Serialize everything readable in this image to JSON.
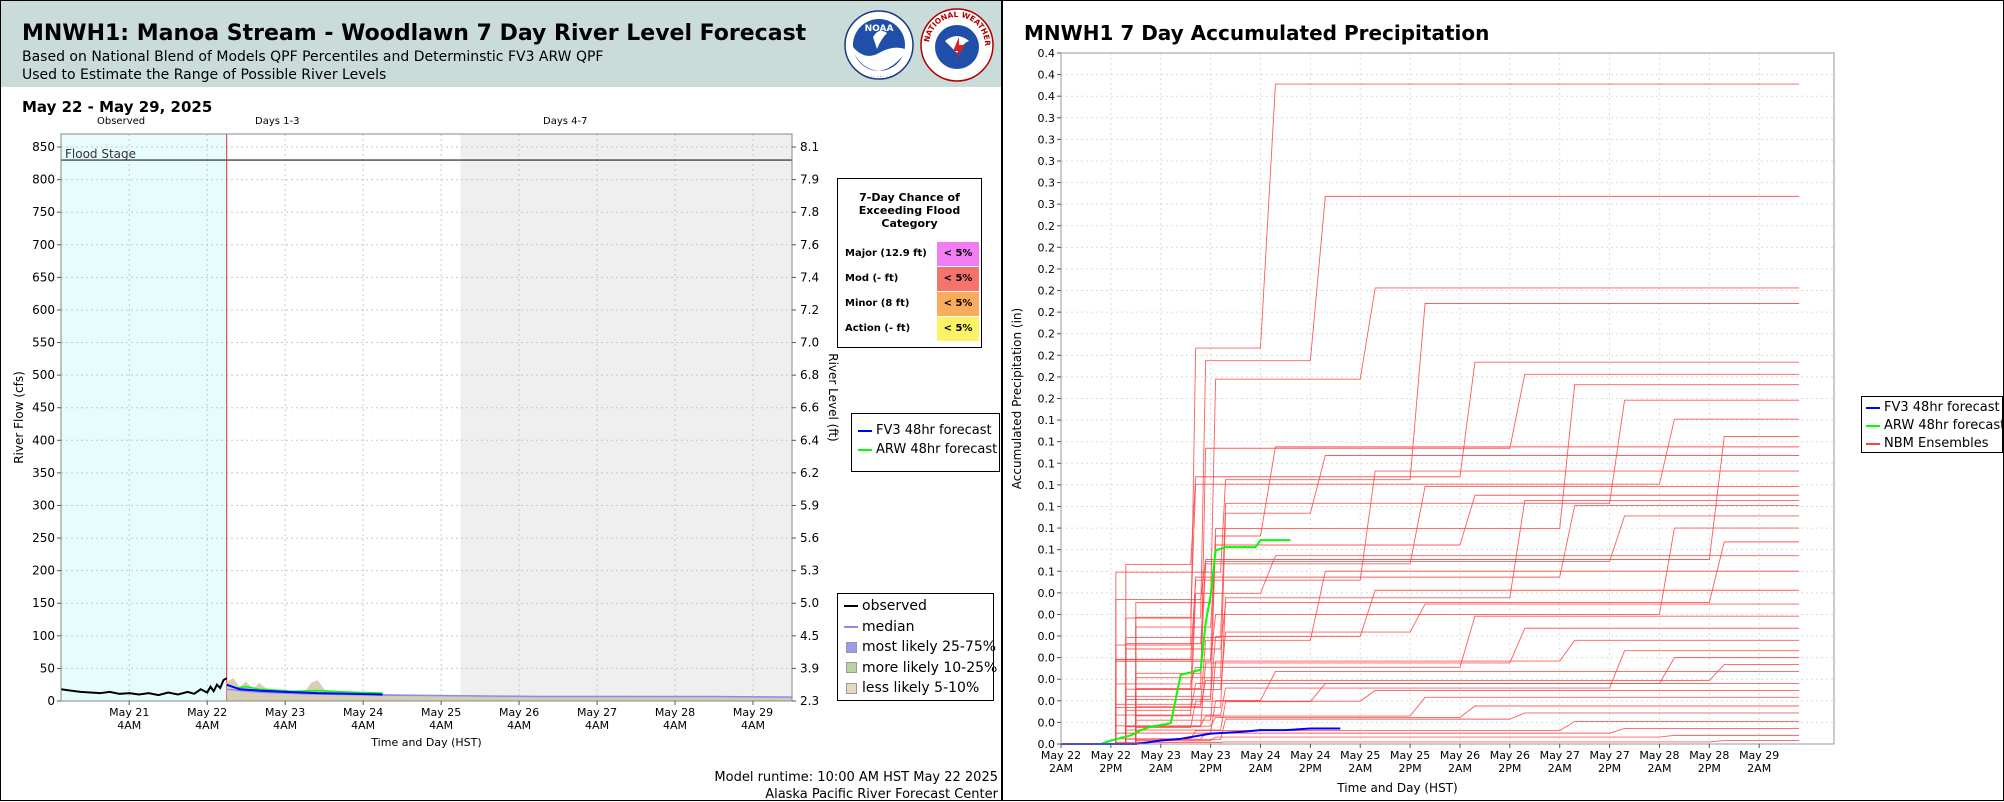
{
  "left": {
    "title": "MNWH1: Manoa Stream - Woodlawn 7 Day River Level Forecast",
    "subtitle1": "Based on National Blend of Models QPF Percentiles and Determinstic FV3 ARW QPF",
    "subtitle2": "Used to Estimate the Range of Possible River Levels",
    "date_range": "May 22 - May 29, 2025",
    "sections": {
      "observed": "Observed",
      "days13": "Days 1-3",
      "days47": "Days 4-7"
    },
    "flood_stage_label": "Flood Stage",
    "flood_table": {
      "title": "7-Day Chance of Exceeding Flood Category",
      "rows": [
        {
          "label": "Major (12.9 ft)",
          "value": "< 5%",
          "color": "#f27cf2"
        },
        {
          "label": "Mod (- ft)",
          "value": "< 5%",
          "color": "#f5736b"
        },
        {
          "label": "Minor (8 ft)",
          "value": "< 5%",
          "color": "#fbab5c"
        },
        {
          "label": "Action (- ft)",
          "value": "< 5%",
          "color": "#fbf265"
        }
      ]
    },
    "legend_models": [
      {
        "label": "FV3 48hr forecast",
        "color": "#0000ff"
      },
      {
        "label": "ARW 48hr forecast",
        "color": "#00ff00"
      }
    ],
    "legend_main": [
      {
        "label": "observed",
        "color": "#000000",
        "kind": "line"
      },
      {
        "label": "median",
        "color": "#8a8af5",
        "kind": "line"
      },
      {
        "label": "most likely 25-75%",
        "color": "#9a9af0",
        "kind": "box"
      },
      {
        "label": "more likely 10-25%",
        "color": "#b9d3a2",
        "kind": "box"
      },
      {
        "label": "less likely 5-10%",
        "color": "#e4d8c0",
        "kind": "box"
      }
    ],
    "footer1": "Model runtime: 10:00 AM HST May 22 2025",
    "footer2": "Alaska Pacific River Forecast Center",
    "logo_noaa": "NOAA",
    "logo_nws": "NATIONAL WEATHER SERVICE"
  },
  "right": {
    "title": "MNWH1 7 Day Accumulated Precipitation",
    "legend": [
      {
        "label": "FV3 48hr forecast",
        "color": "#0000ff"
      },
      {
        "label": "ARW 48hr forecast",
        "color": "#00ff00"
      },
      {
        "label": "NBM Ensembles",
        "color": "#ff4040"
      }
    ]
  },
  "chart_data": [
    {
      "type": "line",
      "title": "MNWH1: Manoa Stream - Woodlawn 7 Day River Level Forecast",
      "xlabel": "Time and Day (HST)",
      "ylabel": "River Flow (cfs)",
      "y2label": "River Level (ft)",
      "ylim": [
        0,
        870
      ],
      "x_range_hours": [
        -51,
        174
      ],
      "x_ticks": [
        {
          "h": -30,
          "l1": "May 21",
          "l2": "4AM"
        },
        {
          "h": -6,
          "l1": "May 22",
          "l2": "4AM"
        },
        {
          "h": 18,
          "l1": "May 23",
          "l2": "4AM"
        },
        {
          "h": 42,
          "l1": "May 24",
          "l2": "4AM"
        },
        {
          "h": 66,
          "l1": "May 25",
          "l2": "4AM"
        },
        {
          "h": 90,
          "l1": "May 26",
          "l2": "4AM"
        },
        {
          "h": 114,
          "l1": "May 27",
          "l2": "4AM"
        },
        {
          "h": 138,
          "l1": "May 28",
          "l2": "4AM"
        },
        {
          "h": 162,
          "l1": "May 29",
          "l2": "4AM"
        }
      ],
      "y_ticks": [
        0,
        50,
        100,
        150,
        200,
        250,
        300,
        350,
        400,
        450,
        500,
        550,
        600,
        650,
        700,
        750,
        800,
        850
      ],
      "y2_ticks": [
        {
          "flow": 0,
          "label": "2.3"
        },
        {
          "flow": 50,
          "label": "3.9"
        },
        {
          "flow": 100,
          "label": "4.5"
        },
        {
          "flow": 150,
          "label": "5.0"
        },
        {
          "flow": 200,
          "label": "5.3"
        },
        {
          "flow": 250,
          "label": "5.6"
        },
        {
          "flow": 300,
          "label": "5.9"
        },
        {
          "flow": 350,
          "label": "6.2"
        },
        {
          "flow": 400,
          "label": "6.4"
        },
        {
          "flow": 450,
          "label": "6.6"
        },
        {
          "flow": 500,
          "label": "6.8"
        },
        {
          "flow": 550,
          "label": "7.0"
        },
        {
          "flow": 600,
          "label": "7.2"
        },
        {
          "flow": 650,
          "label": "7.4"
        },
        {
          "flow": 700,
          "label": "7.6"
        },
        {
          "flow": 750,
          "label": "7.8"
        },
        {
          "flow": 800,
          "label": "7.9"
        },
        {
          "flow": 850,
          "label": "8.1"
        }
      ],
      "flood_stage_flow": 830,
      "forecast_start_hour": 0,
      "days47_start_hour": 72,
      "observed": [
        [
          -51,
          18
        ],
        [
          -48,
          16
        ],
        [
          -45,
          14
        ],
        [
          -42,
          13
        ],
        [
          -39,
          12
        ],
        [
          -36,
          14
        ],
        [
          -33,
          11
        ],
        [
          -30,
          12
        ],
        [
          -27,
          10
        ],
        [
          -24,
          12
        ],
        [
          -21,
          9
        ],
        [
          -18,
          13
        ],
        [
          -15,
          10
        ],
        [
          -12,
          14
        ],
        [
          -10,
          11
        ],
        [
          -8,
          18
        ],
        [
          -6,
          13
        ],
        [
          -5,
          22
        ],
        [
          -4,
          15
        ],
        [
          -3,
          25
        ],
        [
          -2,
          20
        ],
        [
          -1,
          32
        ],
        [
          0,
          35
        ]
      ],
      "median": [
        [
          0,
          18
        ],
        [
          6,
          15
        ],
        [
          12,
          13
        ],
        [
          24,
          11
        ],
        [
          48,
          9
        ],
        [
          72,
          8
        ],
        [
          96,
          7
        ],
        [
          120,
          7
        ],
        [
          148,
          7
        ],
        [
          174,
          6
        ]
      ],
      "band_10_90_top": [
        [
          0,
          30
        ],
        [
          2,
          35
        ],
        [
          4,
          22
        ],
        [
          6,
          30
        ],
        [
          8,
          18
        ],
        [
          10,
          28
        ],
        [
          12,
          20
        ],
        [
          14,
          18
        ],
        [
          16,
          16
        ],
        [
          18,
          18
        ],
        [
          20,
          15
        ],
        [
          24,
          14
        ],
        [
          26,
          28
        ],
        [
          28,
          32
        ],
        [
          30,
          18
        ],
        [
          32,
          14
        ],
        [
          36,
          12
        ],
        [
          48,
          11
        ],
        [
          60,
          10
        ],
        [
          72,
          9
        ],
        [
          96,
          8
        ],
        [
          120,
          8
        ],
        [
          174,
          7
        ]
      ],
      "fv3": [
        [
          0,
          25
        ],
        [
          4,
          18
        ],
        [
          10,
          16
        ],
        [
          18,
          14
        ],
        [
          28,
          12
        ],
        [
          40,
          11
        ],
        [
          48,
          10
        ]
      ],
      "arw": [
        [
          0,
          24
        ],
        [
          3,
          20
        ],
        [
          6,
          22
        ],
        [
          10,
          18
        ],
        [
          14,
          17
        ],
        [
          20,
          15
        ],
        [
          28,
          16
        ],
        [
          36,
          14
        ],
        [
          48,
          12
        ]
      ]
    },
    {
      "type": "line",
      "title": "MNWH1 7 Day Accumulated Precipitation",
      "xlabel": "Time and Day (HST)",
      "ylabel": "Accumulated Precipitation (in)",
      "y_tick_labels": [
        "0.0",
        "0.0",
        "0.0",
        "0.0",
        "0.0",
        "0.0",
        "0.0",
        "0.0",
        "0.1",
        "0.1",
        "0.1",
        "0.1",
        "0.1",
        "0.1",
        "0.1",
        "0.1",
        "0.2",
        "0.2",
        "0.2",
        "0.2",
        "0.2",
        "0.2",
        "0.2",
        "0.2",
        "0.2",
        "0.3",
        "0.3",
        "0.3",
        "0.3",
        "0.3",
        "0.4",
        "0.4",
        "0.4"
      ],
      "ylim": [
        0,
        0.4
      ],
      "x_ticks": [
        {
          "l1": "May 22",
          "l2": "2AM"
        },
        {
          "l1": "May 22",
          "l2": "2PM"
        },
        {
          "l1": "May 23",
          "l2": "2AM"
        },
        {
          "l1": "May 23",
          "l2": "2PM"
        },
        {
          "l1": "May 24",
          "l2": "2AM"
        },
        {
          "l1": "May 24",
          "l2": "2PM"
        },
        {
          "l1": "May 25",
          "l2": "2AM"
        },
        {
          "l1": "May 25",
          "l2": "2PM"
        },
        {
          "l1": "May 26",
          "l2": "2AM"
        },
        {
          "l1": "May 26",
          "l2": "2PM"
        },
        {
          "l1": "May 27",
          "l2": "2AM"
        },
        {
          "l1": "May 27",
          "l2": "2PM"
        },
        {
          "l1": "May 28",
          "l2": "2AM"
        },
        {
          "l1": "May 28",
          "l2": "2PM"
        },
        {
          "l1": "May 29",
          "l2": "2AM"
        }
      ],
      "fv3": [
        [
          0.0,
          0.0
        ],
        [
          1.5,
          0.0
        ],
        [
          2.0,
          0.002
        ],
        [
          2.4,
          0.003
        ],
        [
          3.0,
          0.006
        ],
        [
          3.6,
          0.007
        ],
        [
          4.0,
          0.008
        ],
        [
          4.5,
          0.008
        ],
        [
          5.0,
          0.009
        ],
        [
          5.6,
          0.009
        ]
      ],
      "arw": [
        [
          0.8,
          0.0
        ],
        [
          1.0,
          0.002
        ],
        [
          1.4,
          0.005
        ],
        [
          1.6,
          0.008
        ],
        [
          1.8,
          0.01
        ],
        [
          2.2,
          0.012
        ],
        [
          2.4,
          0.04
        ],
        [
          2.8,
          0.043
        ],
        [
          2.9,
          0.07
        ],
        [
          3.0,
          0.086
        ],
        [
          3.1,
          0.112
        ],
        [
          3.3,
          0.114
        ],
        [
          3.9,
          0.114
        ],
        [
          4.0,
          0.118
        ],
        [
          4.6,
          0.118
        ]
      ],
      "nbm_final": [
        0.382,
        0.317,
        0.264,
        0.255,
        0.221,
        0.214,
        0.208,
        0.199,
        0.188,
        0.178,
        0.172,
        0.167,
        0.158,
        0.149,
        0.144,
        0.141,
        0.138,
        0.132,
        0.125,
        0.117,
        0.109,
        0.1,
        0.089,
        0.081,
        0.074,
        0.067,
        0.06,
        0.054,
        0.05,
        0.046,
        0.042,
        0.035,
        0.031,
        0.027,
        0.022,
        0.018,
        0.013,
        0.009,
        0.005,
        0.002
      ]
    }
  ]
}
